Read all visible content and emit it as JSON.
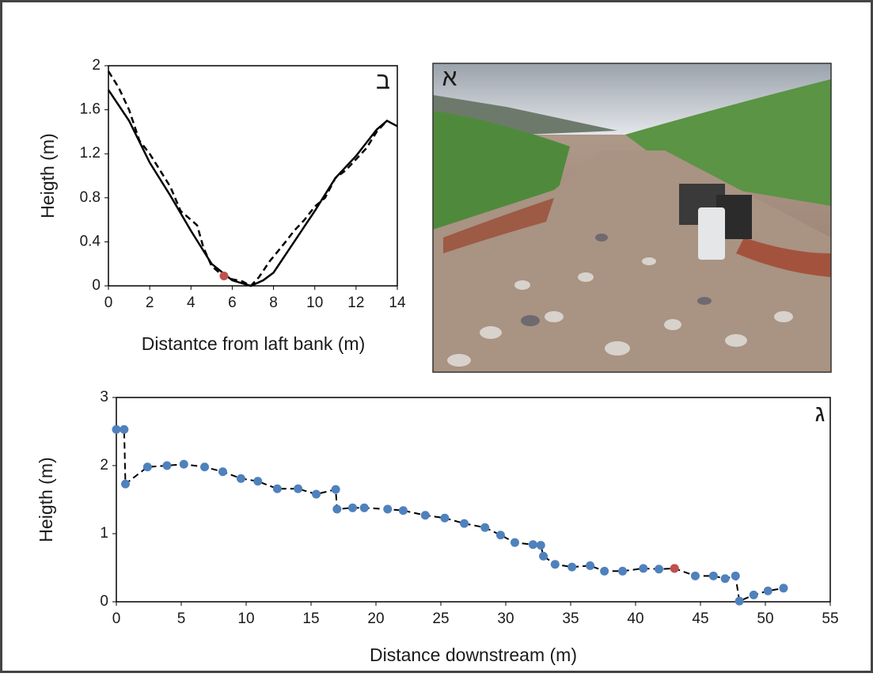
{
  "chart_data": [
    {
      "type": "line",
      "annotation": "ב",
      "xlabel": "Distantce from laft bank (m)",
      "ylabel": "Heigth (m)",
      "xlim": [
        0,
        14
      ],
      "ylim": [
        0,
        2
      ],
      "xticks": [
        0,
        2,
        4,
        6,
        8,
        10,
        12,
        14
      ],
      "yticks": [
        0,
        0.4,
        0.8,
        1.2,
        1.6,
        2
      ],
      "series": [
        {
          "color": "#000000",
          "line_style": "solid",
          "markers": false,
          "x": [
            0,
            1,
            2,
            3,
            4,
            5,
            6,
            6.9,
            7.5,
            8,
            9,
            10,
            11,
            12,
            13,
            13.5,
            14
          ],
          "values": [
            1.78,
            1.5,
            1.12,
            0.82,
            0.5,
            0.2,
            0.05,
            0,
            0.05,
            0.12,
            0.4,
            0.68,
            0.98,
            1.18,
            1.42,
            1.5,
            1.45
          ]
        },
        {
          "color": "#000000",
          "line_style": "dashed",
          "markers": false,
          "x": [
            0,
            0.5,
            1,
            1.5,
            2,
            2.5,
            3,
            3.5,
            4,
            4.3,
            4.6,
            5,
            5.5,
            6,
            6.5,
            6.9,
            7.3,
            7.8,
            8.5,
            9,
            9.5,
            10,
            10.5,
            11,
            11.5,
            12,
            12.5,
            13,
            13.5
          ],
          "values": [
            1.95,
            1.8,
            1.6,
            1.32,
            1.2,
            1.05,
            0.9,
            0.68,
            0.6,
            0.55,
            0.35,
            0.18,
            0.1,
            0.06,
            0.04,
            0,
            0.08,
            0.22,
            0.38,
            0.5,
            0.6,
            0.72,
            0.8,
            0.98,
            1.05,
            1.15,
            1.25,
            1.4,
            1.5
          ]
        },
        {
          "color": "#c0504d",
          "line_style": "none",
          "markers": true,
          "x": [
            5.6
          ],
          "values": [
            0.09
          ]
        }
      ]
    },
    {
      "type": "line",
      "annotation": "ג",
      "xlabel": "Distance downstream (m)",
      "ylabel": "Heigth (m)",
      "xlim": [
        0,
        55
      ],
      "ylim": [
        0,
        3
      ],
      "xticks": [
        0,
        5,
        10,
        15,
        20,
        25,
        30,
        35,
        40,
        45,
        50,
        55
      ],
      "yticks": [
        0,
        1,
        2,
        3
      ],
      "series": [
        {
          "color": "#4f81bd",
          "line_style": "dashed",
          "markers": true,
          "x": [
            0,
            0.6,
            0.7,
            2.4,
            3.9,
            5.2,
            6.8,
            8.2,
            9.6,
            10.9,
            12.4,
            14.0,
            15.4,
            16.9,
            17.0,
            18.2,
            19.1,
            20.9,
            22.1,
            23.8,
            25.3,
            26.8,
            28.4,
            29.6,
            30.7,
            32.1,
            32.7,
            32.9,
            33.8,
            35.1,
            36.5,
            37.6,
            39.0,
            40.6,
            41.8,
            43.0,
            44.6,
            46.0,
            46.9,
            47.7,
            48.0,
            49.1,
            50.2,
            51.4
          ],
          "values": [
            2.53,
            2.53,
            1.73,
            1.98,
            2.0,
            2.02,
            1.98,
            1.91,
            1.81,
            1.77,
            1.66,
            1.66,
            1.58,
            1.65,
            1.36,
            1.38,
            1.38,
            1.36,
            1.34,
            1.27,
            1.23,
            1.15,
            1.09,
            0.98,
            0.87,
            0.84,
            0.83,
            0.67,
            0.55,
            0.51,
            0.53,
            0.45,
            0.45,
            0.49,
            0.48,
            0.49,
            0.38,
            0.38,
            0.34,
            0.38,
            0.01,
            0.1,
            0.16,
            0.2
          ]
        },
        {
          "color": "#c0504d",
          "line_style": "none",
          "markers": true,
          "x": [
            43.0
          ],
          "values": [
            0.49
          ]
        }
      ]
    }
  ],
  "photo": {
    "label": "א"
  }
}
